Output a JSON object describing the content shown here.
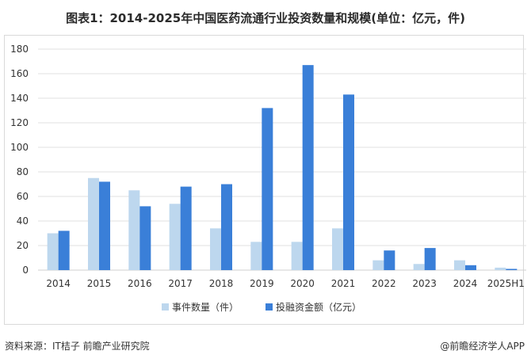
{
  "title": "图表1：2014-2025年中国医药流通行业投资数量和规模(单位：亿元，件)",
  "footer": {
    "source": "资料来源：IT桔子 前瞻产业研究院",
    "brand": "@前瞻经济学人APP"
  },
  "colors": {
    "series_light": "#bdd7ee",
    "series_dark": "#3a7fd8",
    "grid": "#e0e0e0",
    "axis": "#cfcfcf"
  },
  "chart_data": {
    "type": "bar",
    "categories": [
      "2014",
      "2015",
      "2016",
      "2017",
      "2018",
      "2019",
      "2020",
      "2021",
      "2022",
      "2023",
      "2024",
      "2025H1"
    ],
    "series": [
      {
        "name": "事件数量（件）",
        "values": [
          30,
          75,
          65,
          54,
          34,
          23,
          23,
          34,
          8,
          5,
          8,
          2
        ]
      },
      {
        "name": "投融资金额（亿元）",
        "values": [
          32,
          72,
          52,
          68,
          70,
          132,
          167,
          143,
          16,
          18,
          4,
          1
        ]
      }
    ],
    "ylim": [
      0,
      180
    ],
    "yticks": [
      0,
      20,
      40,
      60,
      80,
      100,
      120,
      140,
      160,
      180
    ],
    "grid": true,
    "legend_position": "bottom-center"
  }
}
